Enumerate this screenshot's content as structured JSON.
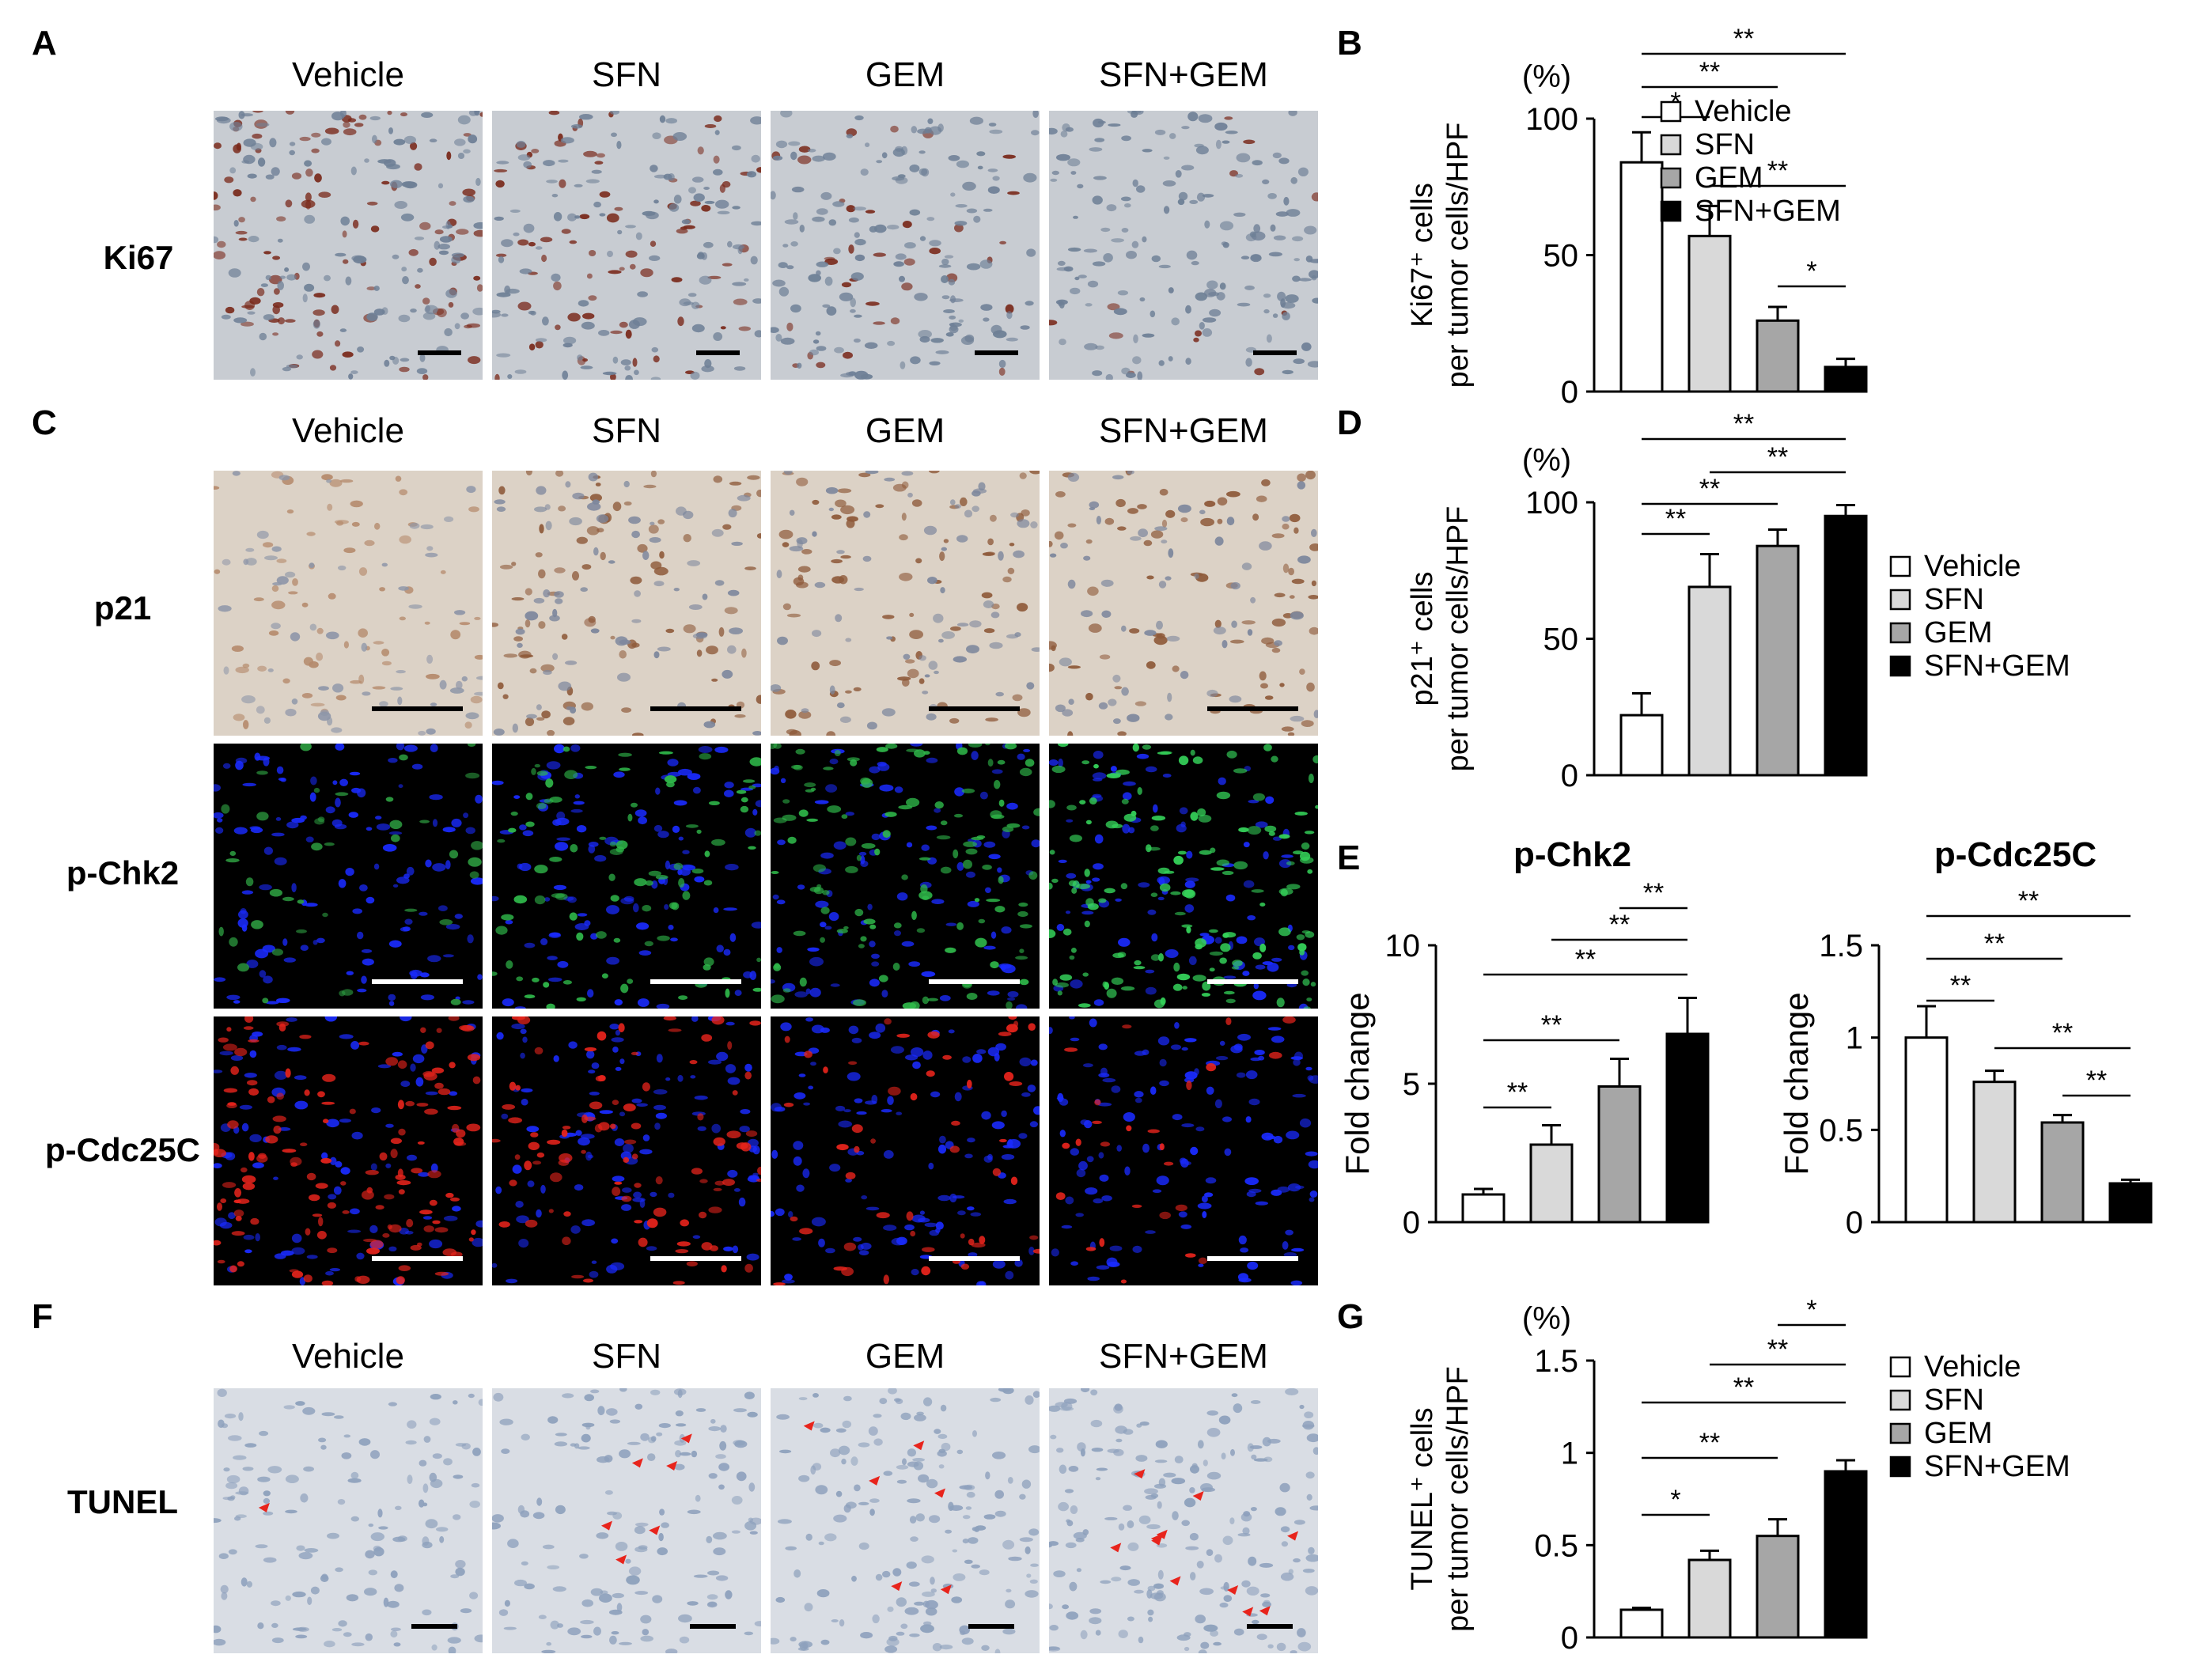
{
  "panels": {
    "A": {
      "letter": "A",
      "columns": [
        "Vehicle",
        "SFN",
        "GEM",
        "SFN+GEM"
      ],
      "row_label": "Ki67"
    },
    "B": {
      "letter": "B"
    },
    "C": {
      "letter": "C",
      "columns": [
        "Vehicle",
        "SFN",
        "GEM",
        "SFN+GEM"
      ],
      "rows": [
        "p21",
        "p-Chk2",
        "p-Cdc25C"
      ]
    },
    "D": {
      "letter": "D"
    },
    "E": {
      "letter": "E"
    },
    "F": {
      "letter": "F",
      "columns": [
        "Vehicle",
        "SFN",
        "GEM",
        "SFN+GEM"
      ],
      "row_label": "TUNEL"
    },
    "G": {
      "letter": "G"
    }
  },
  "colors": {
    "vehicle": "#ffffff",
    "sfn": "#d9d9d9",
    "gem": "#a6a6a6",
    "sfn_gem": "#000000",
    "dapi": "#1a2bff",
    "pchk2": "#2fb84a",
    "pcdc25c": "#e8241c",
    "tunel_arrow": "#e8241c"
  },
  "chart_data": [
    {
      "id": "B",
      "type": "bar",
      "title": "",
      "unit": "(%)",
      "ylabel_line1": "Ki67⁺ cells",
      "ylabel_line2": "per tumor cells/HPF",
      "categories": [
        "Vehicle",
        "SFN",
        "GEM",
        "SFN+GEM"
      ],
      "values": [
        84,
        57,
        26,
        9
      ],
      "errors": [
        11,
        11,
        5,
        3
      ],
      "ylim": [
        0,
        100
      ],
      "yticks": [
        "0",
        "50",
        "100"
      ],
      "legend": [
        "Vehicle",
        "SFN",
        "GEM",
        "SFN+GEM"
      ],
      "legend_position": "right",
      "significance": [
        {
          "from": 0,
          "to": 1,
          "label": "*"
        },
        {
          "from": 0,
          "to": 2,
          "label": "**"
        },
        {
          "from": 0,
          "to": 3,
          "label": "**"
        },
        {
          "from": 1,
          "to": 3,
          "label": "**"
        },
        {
          "from": 2,
          "to": 3,
          "label": "*"
        }
      ]
    },
    {
      "id": "D",
      "type": "bar",
      "title": "",
      "unit": "(%)",
      "ylabel_line1": "p21⁺ cells",
      "ylabel_line2": "per tumor cells/HPF",
      "categories": [
        "Vehicle",
        "SFN",
        "GEM",
        "SFN+GEM"
      ],
      "values": [
        22,
        69,
        84,
        95
      ],
      "errors": [
        8,
        12,
        6,
        4
      ],
      "ylim": [
        0,
        100
      ],
      "yticks": [
        "0",
        "50",
        "100"
      ],
      "legend": [
        "Vehicle",
        "SFN",
        "GEM",
        "SFN+GEM"
      ],
      "legend_position": "right",
      "significance": [
        {
          "from": 0,
          "to": 1,
          "label": "**"
        },
        {
          "from": 0,
          "to": 2,
          "label": "**"
        },
        {
          "from": 0,
          "to": 3,
          "label": "**"
        },
        {
          "from": 1,
          "to": 3,
          "label": "**"
        }
      ]
    },
    {
      "id": "E1",
      "type": "bar",
      "title": "p-Chk2",
      "ylabel_line1": "Fold change",
      "categories": [
        "Vehicle",
        "SFN",
        "GEM",
        "SFN+GEM"
      ],
      "values": [
        1.0,
        2.8,
        4.9,
        6.8
      ],
      "errors": [
        0.2,
        0.7,
        1.0,
        1.3
      ],
      "ylim": [
        0,
        10
      ],
      "yticks": [
        "0",
        "5",
        "10"
      ],
      "significance": [
        {
          "from": 0,
          "to": 1,
          "label": "**"
        },
        {
          "from": 0,
          "to": 2,
          "label": "**"
        },
        {
          "from": 0,
          "to": 3,
          "label": "**"
        },
        {
          "from": 1,
          "to": 3,
          "label": "**"
        },
        {
          "from": 2,
          "to": 3,
          "label": "**"
        }
      ]
    },
    {
      "id": "E2",
      "type": "bar",
      "title": "p-Cdc25C",
      "ylabel_line1": "Fold change",
      "categories": [
        "Vehicle",
        "SFN",
        "GEM",
        "SFN+GEM"
      ],
      "values": [
        1.0,
        0.76,
        0.54,
        0.21
      ],
      "errors": [
        0.17,
        0.06,
        0.04,
        0.02
      ],
      "ylim": [
        0,
        1.5
      ],
      "yticks": [
        "0",
        "0.5",
        "1",
        "1.5"
      ],
      "significance": [
        {
          "from": 0,
          "to": 1,
          "label": "**"
        },
        {
          "from": 0,
          "to": 2,
          "label": "**"
        },
        {
          "from": 0,
          "to": 3,
          "label": "**"
        },
        {
          "from": 1,
          "to": 3,
          "label": "**"
        },
        {
          "from": 2,
          "to": 3,
          "label": "**"
        }
      ]
    },
    {
      "id": "G",
      "type": "bar",
      "title": "",
      "unit": "(%)",
      "ylabel_line1": "TUNEL⁺ cells",
      "ylabel_line2": "per tumor cells/HPF",
      "categories": [
        "Vehicle",
        "SFN",
        "GEM",
        "SFN+GEM"
      ],
      "values": [
        0.15,
        0.42,
        0.55,
        0.9
      ],
      "errors": [
        0.01,
        0.05,
        0.09,
        0.06
      ],
      "ylim": [
        0,
        1.5
      ],
      "yticks": [
        "0",
        "0.5",
        "1",
        "1.5"
      ],
      "legend": [
        "Vehicle",
        "SFN",
        "GEM",
        "SFN+GEM"
      ],
      "legend_position": "right",
      "significance": [
        {
          "from": 0,
          "to": 1,
          "label": "*"
        },
        {
          "from": 0,
          "to": 2,
          "label": "**"
        },
        {
          "from": 0,
          "to": 3,
          "label": "**"
        },
        {
          "from": 1,
          "to": 3,
          "label": "**"
        },
        {
          "from": 2,
          "to": 3,
          "label": "*"
        }
      ]
    }
  ]
}
